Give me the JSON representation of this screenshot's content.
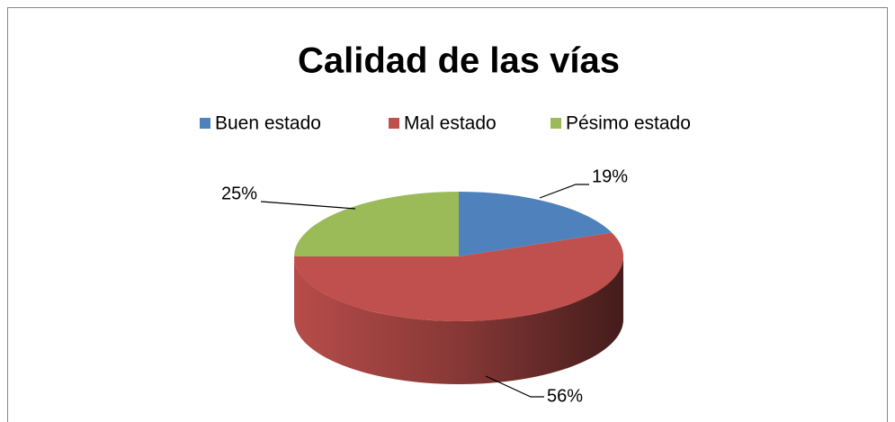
{
  "chart_data": {
    "type": "pie",
    "title": "Calidad de las vías",
    "categories": [
      "Buen estado",
      "Mal estado",
      "Pésimo estado"
    ],
    "values": [
      19,
      56,
      25
    ],
    "value_labels": [
      "19%",
      "56%",
      "25%"
    ],
    "colors": [
      "#4f81bd",
      "#c0504d",
      "#9bbb59"
    ],
    "legend": "top"
  }
}
